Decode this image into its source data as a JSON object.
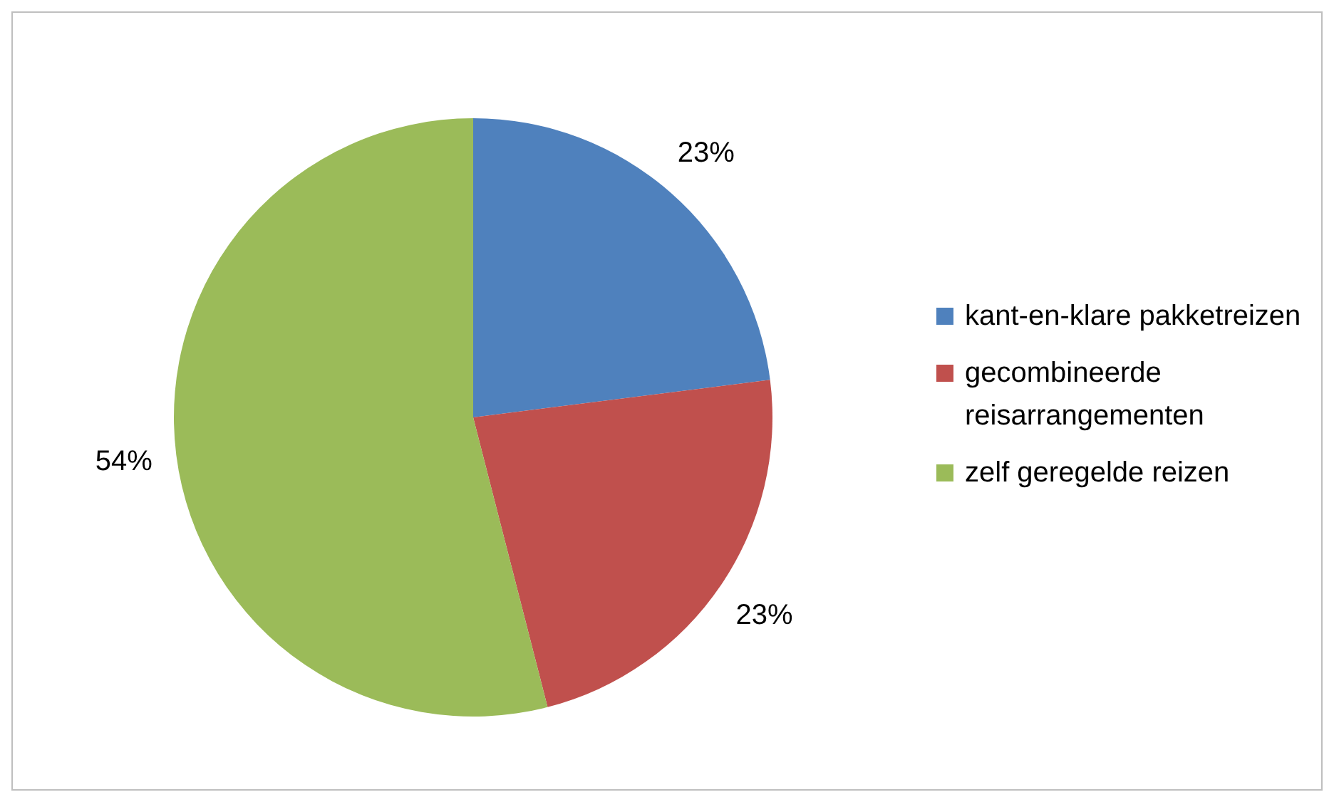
{
  "chart_data": {
    "type": "pie",
    "categories": [
      "kant-en-klare pakketreizen",
      "gecombineerde reisarrangementen",
      "zelf geregelde reizen"
    ],
    "values": [
      23,
      23,
      54
    ],
    "colors": [
      "#4f81bd",
      "#c0504d",
      "#9bbb59"
    ],
    "value_labels": [
      "23%",
      "23%",
      "54%"
    ],
    "legend": "right"
  }
}
